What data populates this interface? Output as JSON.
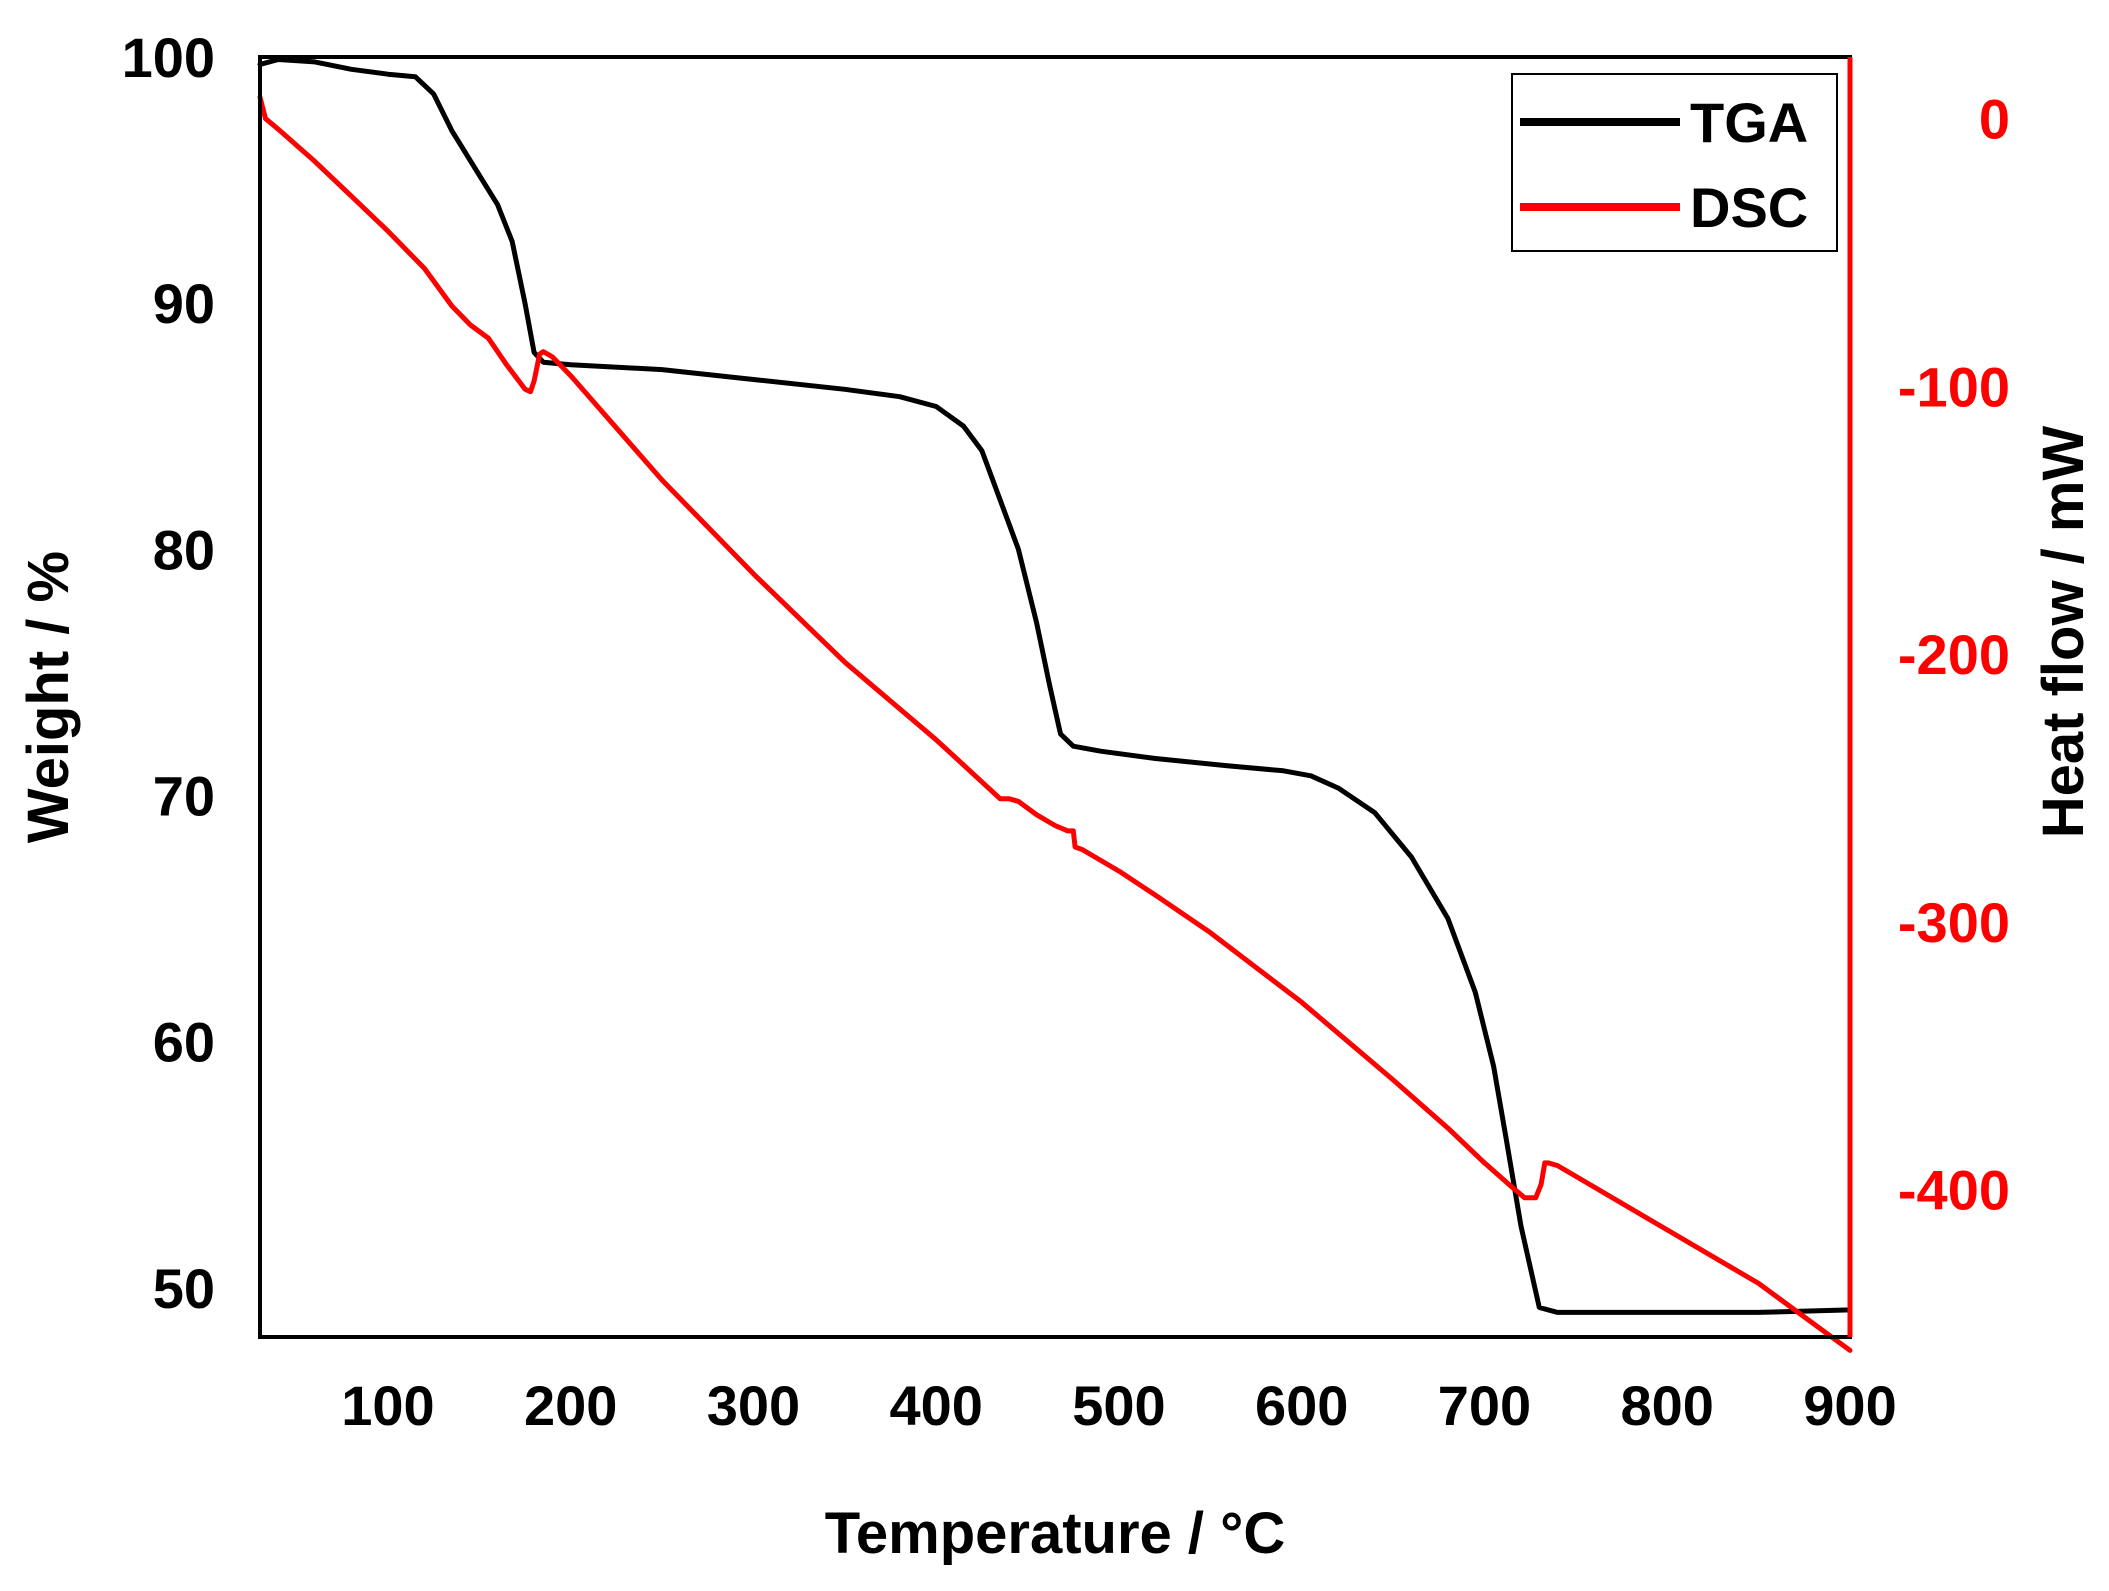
{
  "chart_data": {
    "type": "line",
    "title": "",
    "xlabel": "Temperature / °C",
    "ylabel": "Weight / %",
    "y2label": "Heat flow / mW",
    "xlim": [
      30,
      900
    ],
    "ylim": [
      48,
      100
    ],
    "y2lim": [
      -455,
      23
    ],
    "x_ticks": [
      100,
      200,
      300,
      400,
      500,
      600,
      700,
      800,
      900
    ],
    "y_ticks": [
      50,
      60,
      70,
      80,
      90,
      100
    ],
    "y2_ticks": [
      0,
      -100,
      -200,
      -300,
      -400
    ],
    "legend_position": "top-right",
    "colors": {
      "TGA": "#000000",
      "DSC": "#ff0000"
    },
    "series": [
      {
        "name": "TGA",
        "axis": "left",
        "x": [
          30,
          40,
          60,
          80,
          100,
          115,
          125,
          135,
          145,
          150,
          160,
          168,
          175,
          180,
          185,
          200,
          250,
          300,
          350,
          380,
          400,
          415,
          425,
          435,
          445,
          455,
          462,
          468,
          475,
          490,
          520,
          560,
          590,
          605,
          620,
          640,
          660,
          680,
          695,
          705,
          712,
          720,
          730,
          740,
          800,
          850,
          900
        ],
        "values": [
          99.7,
          99.9,
          99.8,
          99.5,
          99.3,
          99.2,
          98.5,
          97.0,
          95.8,
          95.2,
          94.0,
          92.5,
          90.0,
          88.0,
          87.6,
          87.5,
          87.3,
          86.9,
          86.5,
          86.2,
          85.8,
          85.0,
          84.0,
          82.0,
          80.0,
          77.0,
          74.5,
          72.5,
          72.0,
          71.8,
          71.5,
          71.2,
          71.0,
          70.8,
          70.3,
          69.3,
          67.5,
          65.0,
          62.0,
          59.0,
          56.0,
          52.5,
          49.2,
          49.0,
          49.0,
          49.0,
          49.1
        ]
      },
      {
        "name": "DSC",
        "axis": "right",
        "x": [
          30,
          33,
          40,
          60,
          80,
          100,
          120,
          135,
          145,
          155,
          165,
          175,
          178,
          180,
          183,
          185,
          190,
          200,
          250,
          300,
          350,
          400,
          435,
          440,
          445,
          455,
          465,
          472,
          475,
          476,
          480,
          500,
          520,
          550,
          600,
          650,
          680,
          700,
          715,
          722,
          728,
          731,
          733,
          735,
          740,
          760,
          800,
          850,
          880,
          900
        ],
        "values": [
          8,
          0,
          -4,
          -16,
          -29,
          -42,
          -56,
          -70,
          -77,
          -82,
          -92,
          -101,
          -102,
          -98,
          -88,
          -87,
          -89,
          -96,
          -135,
          -170,
          -203,
          -232,
          -254,
          -254,
          -255,
          -260,
          -264,
          -266,
          -266,
          -272,
          -273,
          -281,
          -290,
          -304,
          -330,
          -359,
          -377,
          -390,
          -399,
          -403,
          -403,
          -398,
          -390,
          -390,
          -391,
          -399,
          -415,
          -435,
          -450,
          -460
        ]
      }
    ],
    "legend": [
      {
        "name": "TGA",
        "label": "TGA"
      },
      {
        "name": "DSC",
        "label": "DSC"
      }
    ]
  }
}
